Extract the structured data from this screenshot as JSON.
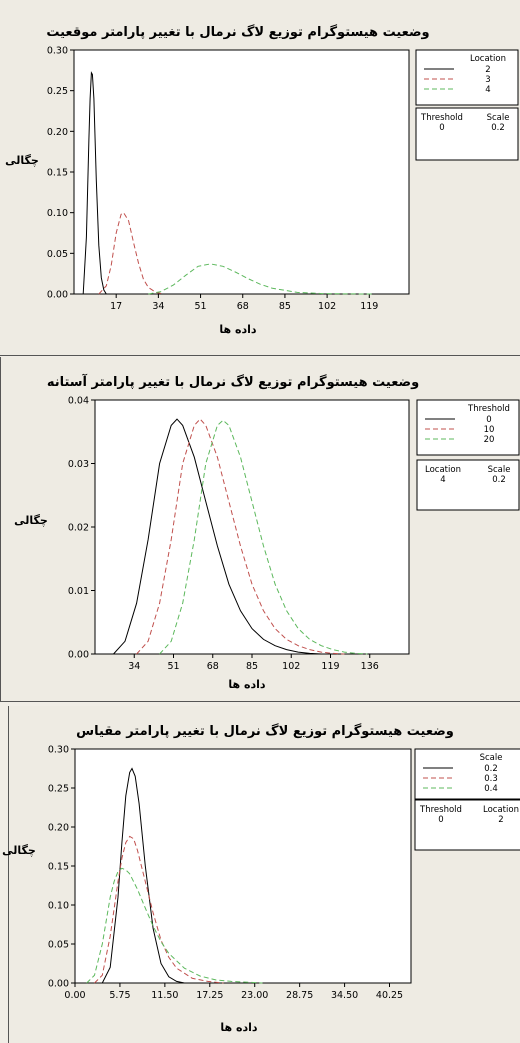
{
  "chart_data": [
    {
      "type": "line",
      "title": "وضعیت هیستوگرام توزیع لاگ نرمال با تغییر پارامتر موقعیت",
      "xlabel": "داده ها",
      "ylabel": "چگالی",
      "xlim": [
        0,
        135
      ],
      "ylim": [
        0,
        0.3
      ],
      "xticks": [
        "17",
        "34",
        "51",
        "68",
        "85",
        "102",
        "119"
      ],
      "yticks": [
        "0.00",
        "0.05",
        "0.10",
        "0.15",
        "0.20",
        "0.25",
        "0.30"
      ],
      "legend": {
        "header": "Location",
        "entries": [
          "2",
          "3",
          "4"
        ]
      },
      "params": {
        "headers": [
          "Threshold",
          "Scale"
        ],
        "values": [
          "0",
          "0.2"
        ]
      },
      "series": [
        {
          "name": "2",
          "color": "#000000",
          "dash": "solid",
          "x": [
            3.7,
            5.0,
            6.0,
            6.5,
            7.0,
            7.4,
            8.0,
            8.5,
            9.0,
            10.0,
            11.0,
            12.0,
            13.0
          ],
          "y": [
            0.0,
            0.07,
            0.19,
            0.24,
            0.272,
            0.27,
            0.24,
            0.19,
            0.14,
            0.06,
            0.02,
            0.005,
            0.0
          ]
        },
        {
          "name": "3",
          "color": "#c0504d",
          "dash": "dashed",
          "x": [
            10,
            13,
            15,
            17,
            19,
            20,
            22,
            24,
            26,
            28,
            30,
            33,
            36
          ],
          "y": [
            0.0,
            0.01,
            0.035,
            0.075,
            0.098,
            0.1,
            0.09,
            0.063,
            0.038,
            0.018,
            0.008,
            0.002,
            0.0
          ]
        },
        {
          "name": "4",
          "color": "#5cb85c",
          "dash": "dashed",
          "x": [
            30,
            35,
            40,
            45,
            50,
            55,
            60,
            65,
            70,
            75,
            80,
            90,
            100,
            110,
            120
          ],
          "y": [
            0.0,
            0.003,
            0.011,
            0.023,
            0.034,
            0.037,
            0.034,
            0.027,
            0.019,
            0.012,
            0.007,
            0.002,
            0.0005,
            0.0001,
            0.0
          ]
        }
      ]
    },
    {
      "type": "line",
      "title": "وضعیت هیستوگرام توزیع لاگ نرمال با تغییر پارامتر آستانه",
      "xlabel": "داده ها",
      "ylabel": "چگالی",
      "xlim": [
        17,
        153
      ],
      "ylim": [
        0,
        0.04
      ],
      "xticks": [
        "34",
        "51",
        "68",
        "85",
        "102",
        "119",
        "136"
      ],
      "yticks": [
        "0.00",
        "0.01",
        "0.02",
        "0.03",
        "0.04"
      ],
      "legend": {
        "header": "Threshold",
        "entries": [
          "0",
          "10",
          "20"
        ]
      },
      "params": {
        "headers": [
          "Location",
          "Scale"
        ],
        "values": [
          "4",
          "0.2"
        ]
      },
      "series": [
        {
          "name": "0",
          "color": "#000000",
          "dash": "solid",
          "x": [
            25,
            30,
            35,
            40,
            45,
            50,
            52.5,
            55,
            60,
            65,
            70,
            75,
            80,
            85,
            90,
            95,
            100,
            105,
            110,
            115
          ],
          "y": [
            0.0,
            0.002,
            0.008,
            0.018,
            0.03,
            0.036,
            0.037,
            0.036,
            0.031,
            0.024,
            0.017,
            0.011,
            0.0068,
            0.004,
            0.0023,
            0.0013,
            0.0007,
            0.0003,
            0.0001,
            0.0
          ]
        },
        {
          "name": "10",
          "color": "#c0504d",
          "dash": "dashed",
          "x": [
            35,
            40,
            45,
            50,
            55,
            60,
            62.5,
            65,
            70,
            75,
            80,
            85,
            90,
            95,
            100,
            105,
            110,
            115,
            120,
            125
          ],
          "y": [
            0.0,
            0.002,
            0.008,
            0.018,
            0.03,
            0.036,
            0.037,
            0.036,
            0.031,
            0.024,
            0.017,
            0.011,
            0.0068,
            0.004,
            0.0023,
            0.0013,
            0.0007,
            0.0003,
            0.0001,
            0.0
          ]
        },
        {
          "name": "20",
          "color": "#5cb85c",
          "dash": "dashed",
          "x": [
            45,
            50,
            55,
            60,
            65,
            70,
            72.5,
            75,
            80,
            85,
            90,
            95,
            100,
            105,
            110,
            115,
            120,
            125,
            130,
            135
          ],
          "y": [
            0.0,
            0.002,
            0.008,
            0.018,
            0.03,
            0.036,
            0.0368,
            0.036,
            0.031,
            0.024,
            0.017,
            0.011,
            0.0068,
            0.004,
            0.0023,
            0.0013,
            0.0007,
            0.0003,
            0.0001,
            0.0
          ]
        }
      ]
    },
    {
      "type": "line",
      "title": "وضعیت هیستوگرام توزیع لاگ نرمال با تغییر پارامتر مقیاس",
      "xlabel": "داده ها",
      "ylabel": "چگالی",
      "xlim": [
        0,
        43
      ],
      "ylim": [
        0,
        0.3
      ],
      "xticks": [
        "0.00",
        "5.75",
        "11.50",
        "17.25",
        "23.00",
        "28.75",
        "34.50",
        "40.25"
      ],
      "yticks": [
        "0.00",
        "0.05",
        "0.10",
        "0.15",
        "0.20",
        "0.25",
        "0.30"
      ],
      "legend": {
        "header": "Scale",
        "entries": [
          "0.2",
          "0.3",
          "0.4"
        ]
      },
      "params": {
        "headers": [
          "Threshold",
          "Location"
        ],
        "values": [
          "0",
          "2"
        ]
      },
      "series": [
        {
          "name": "0.2",
          "color": "#000000",
          "dash": "solid",
          "x": [
            3.5,
            4.5,
            5.5,
            6.0,
            6.5,
            7.0,
            7.3,
            7.7,
            8.2,
            9.0,
            10.0,
            11.0,
            12.0,
            13.0,
            14.0
          ],
          "y": [
            0.0,
            0.02,
            0.11,
            0.18,
            0.24,
            0.27,
            0.275,
            0.265,
            0.23,
            0.15,
            0.07,
            0.025,
            0.008,
            0.002,
            0.0
          ]
        },
        {
          "name": "0.3",
          "color": "#c0504d",
          "dash": "dashed",
          "x": [
            2.5,
            3.5,
            4.5,
            5.5,
            6.0,
            6.5,
            7.0,
            7.5,
            8.0,
            9.0,
            10.0,
            11.0,
            12.0,
            13.0,
            15.0,
            17.0,
            19.0
          ],
          "y": [
            0.0,
            0.01,
            0.06,
            0.13,
            0.16,
            0.18,
            0.188,
            0.185,
            0.17,
            0.13,
            0.09,
            0.055,
            0.033,
            0.019,
            0.006,
            0.002,
            0.0
          ]
        },
        {
          "name": "0.4",
          "color": "#5cb85c",
          "dash": "dashed",
          "x": [
            1.5,
            2.5,
            3.5,
            4.5,
            5.0,
            5.5,
            6.0,
            6.5,
            7.0,
            8.0,
            9.0,
            10.0,
            11.0,
            12.0,
            14.0,
            16.0,
            18.0,
            20.0,
            24.0
          ],
          "y": [
            0.0,
            0.01,
            0.05,
            0.11,
            0.13,
            0.143,
            0.147,
            0.145,
            0.14,
            0.12,
            0.096,
            0.073,
            0.053,
            0.038,
            0.019,
            0.009,
            0.004,
            0.002,
            0.0
          ]
        }
      ]
    }
  ]
}
